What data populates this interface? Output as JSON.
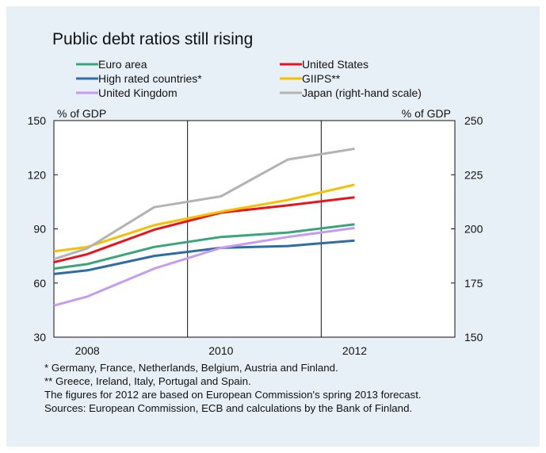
{
  "chart_data": {
    "type": "line",
    "title": "Public debt ratios still rising",
    "left_axis_unit": "% of GDP",
    "right_axis_unit": "% of GDP",
    "x_ticks": [
      "2008",
      "2010",
      "2012"
    ],
    "x_range": [
      2007.5,
      2013.5
    ],
    "ylim_left": [
      30,
      150
    ],
    "yticks_left": [
      30,
      60,
      90,
      120,
      150
    ],
    "ylim_right": [
      150,
      250
    ],
    "yticks_right": [
      150,
      175,
      200,
      225,
      250
    ],
    "grid": "vertical at 2009.5 and 2011.5",
    "legend_position": "top, two columns",
    "series": [
      {
        "name": "Euro area",
        "color": "#3aa57c",
        "axis": "left",
        "x": [
          2007.5,
          2008,
          2009,
          2010,
          2011,
          2012
        ],
        "y": [
          68,
          70.5,
          80,
          85.5,
          88,
          92.5
        ]
      },
      {
        "name": "United States",
        "color": "#e8141d",
        "axis": "left",
        "x": [
          2007.5,
          2008,
          2009,
          2010,
          2011,
          2012
        ],
        "y": [
          71.5,
          76,
          89.5,
          99,
          103,
          107.5
        ]
      },
      {
        "name": "High rated countries*",
        "color": "#2e6ca4",
        "axis": "left",
        "x": [
          2007.5,
          2008,
          2009,
          2010,
          2011,
          2012
        ],
        "y": [
          65,
          67,
          75,
          79.5,
          80.5,
          83.5
        ]
      },
      {
        "name": "GIIPS**",
        "color": "#f6c000",
        "axis": "left",
        "x": [
          2007.5,
          2008,
          2009,
          2010,
          2011,
          2012
        ],
        "y": [
          77.5,
          80,
          92,
          99.5,
          106,
          114.5
        ]
      },
      {
        "name": "United Kingdom",
        "color": "#c69cf0",
        "axis": "left",
        "x": [
          2007.5,
          2008,
          2009,
          2010,
          2011,
          2012
        ],
        "y": [
          47.5,
          52.5,
          68,
          79.5,
          85.5,
          90.5
        ]
      },
      {
        "name": "Japan (right-hand scale)",
        "color": "#b3b3b3",
        "axis": "right",
        "x": [
          2007.5,
          2008,
          2009,
          2010,
          2011,
          2012
        ],
        "y": [
          186,
          191,
          210,
          215,
          232,
          237
        ]
      }
    ]
  },
  "notes": [
    "*  Germany, France, Netherlands, Belgium, Austria and Finland.",
    "** Greece, Ireland, Italy, Portugal and Spain.",
    "The figures for 2012 are based on European Commission's spring 2013 forecast.",
    "Sources: European Commission, ECB and calculations by the Bank of Finland."
  ]
}
